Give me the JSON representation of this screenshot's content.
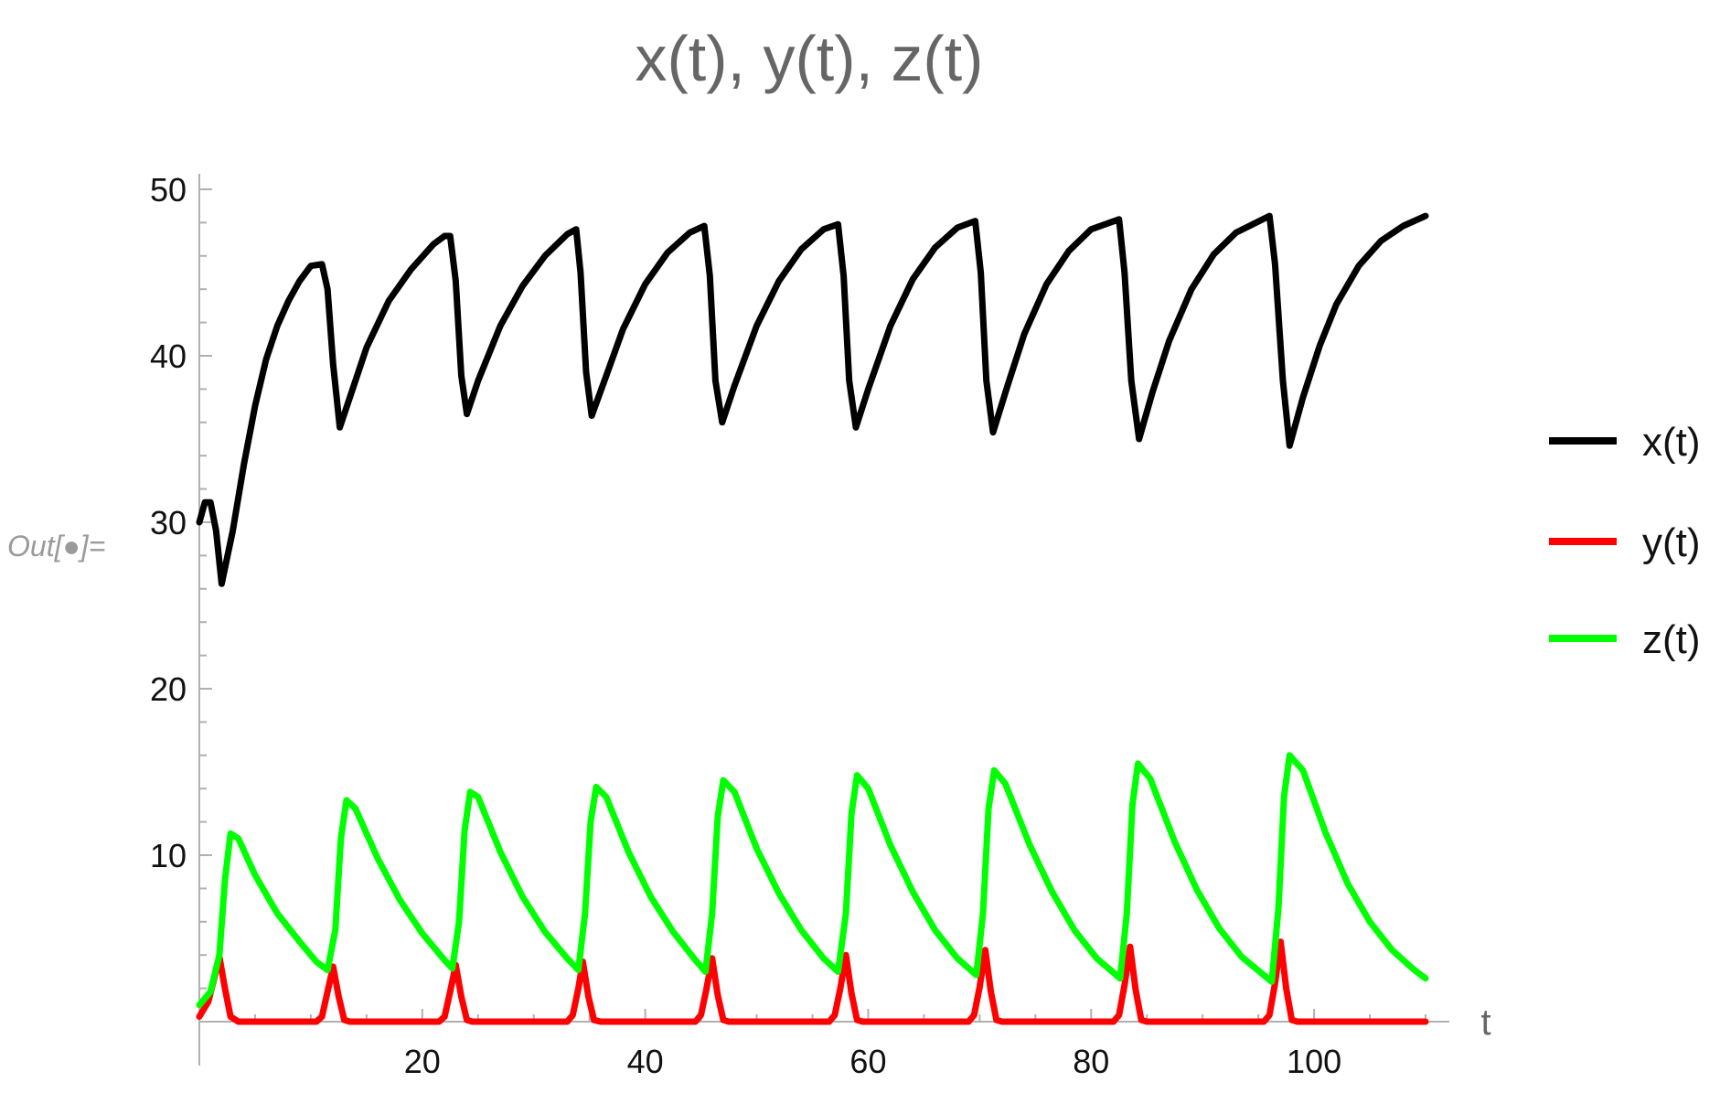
{
  "cell_label": "Out[●]=",
  "chart_data": {
    "type": "line",
    "title": "x(t), y(t), z(t)",
    "xlabel": "t",
    "ylabel": "",
    "xlim": [
      0,
      110
    ],
    "ylim": [
      0,
      50
    ],
    "x_ticks": [
      20,
      40,
      60,
      80,
      100
    ],
    "y_ticks": [
      10,
      20,
      30,
      40,
      50
    ],
    "grid": false,
    "legend_position": "right",
    "series": [
      {
        "name": "x(t)",
        "color": "#000000",
        "points": [
          [
            0,
            30
          ],
          [
            0.5,
            31.2
          ],
          [
            1,
            31.2
          ],
          [
            1.5,
            29.5
          ],
          [
            2,
            26.3
          ],
          [
            3,
            29.5
          ],
          [
            4,
            33.5
          ],
          [
            5,
            37
          ],
          [
            6,
            39.8
          ],
          [
            7,
            41.8
          ],
          [
            8,
            43.3
          ],
          [
            9,
            44.5
          ],
          [
            10,
            45.4
          ],
          [
            11,
            45.5
          ],
          [
            11.5,
            44
          ],
          [
            12,
            39.5
          ],
          [
            12.6,
            35.7
          ],
          [
            13.5,
            37.5
          ],
          [
            15,
            40.5
          ],
          [
            17,
            43.3
          ],
          [
            19,
            45.2
          ],
          [
            21,
            46.7
          ],
          [
            22,
            47.2
          ],
          [
            22.5,
            47.2
          ],
          [
            23,
            44.5
          ],
          [
            23.5,
            38.8
          ],
          [
            24,
            36.5
          ],
          [
            25,
            38.5
          ],
          [
            27,
            41.8
          ],
          [
            29,
            44.2
          ],
          [
            31,
            46
          ],
          [
            33,
            47.3
          ],
          [
            33.8,
            47.6
          ],
          [
            34.2,
            45
          ],
          [
            34.7,
            39
          ],
          [
            35.2,
            36.4
          ],
          [
            36.5,
            38.8
          ],
          [
            38,
            41.6
          ],
          [
            40,
            44.3
          ],
          [
            42,
            46.2
          ],
          [
            44,
            47.4
          ],
          [
            45.3,
            47.8
          ],
          [
            45.8,
            44.8
          ],
          [
            46.3,
            38.5
          ],
          [
            46.9,
            36
          ],
          [
            48,
            38.2
          ],
          [
            50,
            41.8
          ],
          [
            52,
            44.5
          ],
          [
            54,
            46.4
          ],
          [
            56,
            47.6
          ],
          [
            57.3,
            47.9
          ],
          [
            57.8,
            44.8
          ],
          [
            58.3,
            38.5
          ],
          [
            58.9,
            35.7
          ],
          [
            60,
            38
          ],
          [
            62,
            41.8
          ],
          [
            64,
            44.6
          ],
          [
            66,
            46.5
          ],
          [
            68,
            47.7
          ],
          [
            69.6,
            48.1
          ],
          [
            70.1,
            45
          ],
          [
            70.6,
            38.5
          ],
          [
            71.2,
            35.4
          ],
          [
            72.5,
            38.2
          ],
          [
            74,
            41.3
          ],
          [
            76,
            44.3
          ],
          [
            78,
            46.3
          ],
          [
            80,
            47.6
          ],
          [
            82.5,
            48.2
          ],
          [
            83,
            45
          ],
          [
            83.6,
            38.5
          ],
          [
            84.3,
            35
          ],
          [
            85.5,
            37.8
          ],
          [
            87,
            40.9
          ],
          [
            89,
            44
          ],
          [
            91,
            46.1
          ],
          [
            93,
            47.4
          ],
          [
            96,
            48.4
          ],
          [
            96.5,
            45.5
          ],
          [
            97.2,
            38.5
          ],
          [
            97.8,
            34.6
          ],
          [
            99,
            37.5
          ],
          [
            100.5,
            40.6
          ],
          [
            102,
            43.1
          ],
          [
            104,
            45.4
          ],
          [
            106,
            46.9
          ],
          [
            108,
            47.8
          ],
          [
            110,
            48.4
          ]
        ]
      },
      {
        "name": "y(t)",
        "color": "#ff0000",
        "points": [
          [
            0,
            0.3
          ],
          [
            0.8,
            1.2
          ],
          [
            1.3,
            2.5
          ],
          [
            1.8,
            3.9
          ],
          [
            2.3,
            2
          ],
          [
            2.8,
            0.3
          ],
          [
            3.5,
            0
          ],
          [
            10.5,
            0
          ],
          [
            11,
            0.3
          ],
          [
            11.5,
            1.8
          ],
          [
            12,
            3.3
          ],
          [
            12.5,
            1.5
          ],
          [
            13,
            0.1
          ],
          [
            13.5,
            0
          ],
          [
            21.5,
            0
          ],
          [
            22,
            0.3
          ],
          [
            22.5,
            1.8
          ],
          [
            23,
            3.4
          ],
          [
            23.5,
            1.5
          ],
          [
            24,
            0.1
          ],
          [
            24.5,
            0
          ],
          [
            33,
            0
          ],
          [
            33.5,
            0.4
          ],
          [
            34,
            2
          ],
          [
            34.4,
            3.6
          ],
          [
            34.9,
            1.5
          ],
          [
            35.4,
            0.1
          ],
          [
            36,
            0
          ],
          [
            44.5,
            0
          ],
          [
            45,
            0.4
          ],
          [
            45.5,
            2
          ],
          [
            46,
            3.8
          ],
          [
            46.5,
            1.6
          ],
          [
            47,
            0.1
          ],
          [
            47.5,
            0
          ],
          [
            56.5,
            0
          ],
          [
            57,
            0.4
          ],
          [
            57.5,
            2
          ],
          [
            58,
            4
          ],
          [
            58.5,
            1.7
          ],
          [
            59,
            0.1
          ],
          [
            59.5,
            0
          ],
          [
            69,
            0
          ],
          [
            69.5,
            0.4
          ],
          [
            70,
            2.1
          ],
          [
            70.5,
            4.3
          ],
          [
            71,
            1.8
          ],
          [
            71.5,
            0.1
          ],
          [
            72,
            0
          ],
          [
            82,
            0
          ],
          [
            82.5,
            0.4
          ],
          [
            83,
            2.2
          ],
          [
            83.5,
            4.5
          ],
          [
            84,
            1.9
          ],
          [
            84.5,
            0.1
          ],
          [
            85,
            0
          ],
          [
            95.5,
            0
          ],
          [
            96,
            0.4
          ],
          [
            96.5,
            2.3
          ],
          [
            97,
            4.8
          ],
          [
            97.5,
            2
          ],
          [
            98,
            0.1
          ],
          [
            98.5,
            0
          ],
          [
            110,
            0
          ]
        ]
      },
      {
        "name": "z(t)",
        "color": "#00ff00",
        "points": [
          [
            0,
            1
          ],
          [
            1,
            1.8
          ],
          [
            1.8,
            4
          ],
          [
            2.3,
            8.5
          ],
          [
            2.8,
            11.3
          ],
          [
            3.5,
            11
          ],
          [
            5,
            8.8
          ],
          [
            7,
            6.5
          ],
          [
            9,
            4.8
          ],
          [
            10.5,
            3.6
          ],
          [
            11.5,
            3.1
          ],
          [
            12.2,
            5.5
          ],
          [
            12.7,
            11
          ],
          [
            13.2,
            13.3
          ],
          [
            14,
            12.8
          ],
          [
            16,
            9.8
          ],
          [
            18,
            7.3
          ],
          [
            20,
            5.3
          ],
          [
            22,
            3.7
          ],
          [
            22.7,
            3.2
          ],
          [
            23.3,
            6
          ],
          [
            23.8,
            11.5
          ],
          [
            24.3,
            13.8
          ],
          [
            25,
            13.5
          ],
          [
            27,
            10.2
          ],
          [
            29,
            7.5
          ],
          [
            31,
            5.4
          ],
          [
            33,
            3.8
          ],
          [
            34,
            3.1
          ],
          [
            34.6,
            6.5
          ],
          [
            35.1,
            12
          ],
          [
            35.6,
            14.1
          ],
          [
            36.5,
            13.5
          ],
          [
            38.5,
            10.2
          ],
          [
            40.5,
            7.5
          ],
          [
            42.5,
            5.4
          ],
          [
            44.5,
            3.7
          ],
          [
            45.4,
            3
          ],
          [
            46,
            6.5
          ],
          [
            46.5,
            12.3
          ],
          [
            47,
            14.5
          ],
          [
            48,
            13.8
          ],
          [
            50,
            10.4
          ],
          [
            52,
            7.7
          ],
          [
            54,
            5.5
          ],
          [
            56,
            3.8
          ],
          [
            57.3,
            3
          ],
          [
            58,
            6.5
          ],
          [
            58.5,
            12.5
          ],
          [
            59,
            14.8
          ],
          [
            60,
            14
          ],
          [
            62,
            10.6
          ],
          [
            64,
            7.8
          ],
          [
            66,
            5.5
          ],
          [
            68,
            3.8
          ],
          [
            69.7,
            2.8
          ],
          [
            70.3,
            6.5
          ],
          [
            70.8,
            12.8
          ],
          [
            71.3,
            15.1
          ],
          [
            72.3,
            14.3
          ],
          [
            74.5,
            10.6
          ],
          [
            76.5,
            7.8
          ],
          [
            78.5,
            5.5
          ],
          [
            80.5,
            3.8
          ],
          [
            82.6,
            2.6
          ],
          [
            83.2,
            6.5
          ],
          [
            83.7,
            13
          ],
          [
            84.2,
            15.5
          ],
          [
            85.3,
            14.6
          ],
          [
            87.5,
            10.8
          ],
          [
            89.5,
            7.9
          ],
          [
            91.5,
            5.6
          ],
          [
            93.5,
            3.9
          ],
          [
            96.2,
            2.4
          ],
          [
            96.8,
            6.8
          ],
          [
            97.3,
            13.5
          ],
          [
            97.8,
            16
          ],
          [
            99,
            15.1
          ],
          [
            101,
            11.4
          ],
          [
            103,
            8.3
          ],
          [
            105,
            6
          ],
          [
            107,
            4.3
          ],
          [
            109,
            3.1
          ],
          [
            110,
            2.6
          ]
        ]
      }
    ]
  }
}
